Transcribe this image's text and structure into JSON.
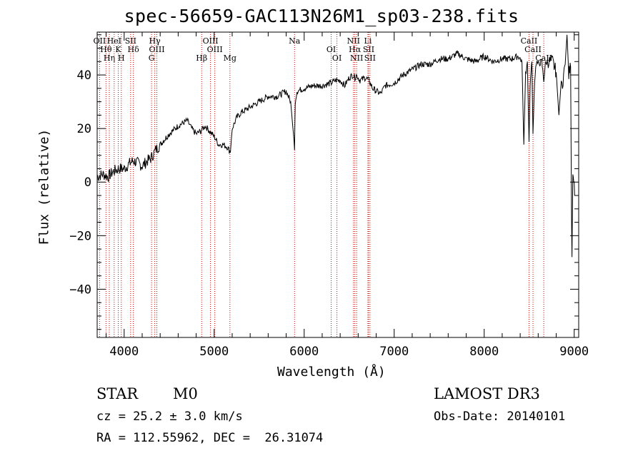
{
  "chart_data": {
    "type": "line",
    "title": "spec-56659-GAC113N26M1_sp03-238.fits",
    "xlabel": "Wavelength (Å)",
    "ylabel": "Flux (relative)",
    "xlim": [
      3700,
      9050
    ],
    "ylim": [
      -58,
      56
    ],
    "x_ticks": [
      4000,
      5000,
      6000,
      7000,
      8000,
      9000
    ],
    "y_ticks": [
      -40,
      -20,
      0,
      20,
      40
    ],
    "grid": false,
    "series": [
      {
        "x": [
          3700,
          3760,
          3820,
          3880,
          3940,
          4000,
          4060,
          4100,
          4160,
          4200,
          4260,
          4300,
          4350,
          4400,
          4500,
          4600,
          4700,
          4750,
          4800,
          4850,
          4900,
          4950,
          5000,
          5050,
          5100,
          5150,
          5180,
          5200,
          5250,
          5300,
          5400,
          5500,
          5600,
          5700,
          5800,
          5850,
          5880,
          5893,
          5900,
          5920,
          6000,
          6100,
          6200,
          6300,
          6350,
          6400,
          6450,
          6500,
          6540,
          6563,
          6580,
          6620,
          6680,
          6720,
          6760,
          6800,
          6850,
          6900,
          7000,
          7100,
          7200,
          7300,
          7400,
          7500,
          7600,
          7700,
          7800,
          7900,
          8000,
          8100,
          8200,
          8300,
          8380,
          8420,
          8440,
          8460,
          8480,
          8498,
          8510,
          8520,
          8530,
          8542,
          8560,
          8580,
          8600,
          8640,
          8662,
          8680,
          8700,
          8760,
          8800,
          8830,
          8850,
          8870,
          8900,
          8920,
          8940,
          8950,
          8960,
          8970,
          8975,
          8985,
          9000,
          9010
        ],
        "y": [
          2,
          3,
          2,
          4,
          5,
          5,
          7,
          8,
          7,
          6,
          8,
          9,
          12,
          14,
          18,
          21,
          23,
          20,
          18,
          19,
          21,
          19,
          17,
          14,
          14,
          13,
          11,
          20,
          24,
          26,
          28,
          30,
          32,
          32,
          34,
          30,
          18,
          12,
          30,
          34,
          35,
          36,
          36,
          37,
          38,
          38,
          36,
          39,
          40,
          39,
          40,
          38,
          39,
          38,
          35,
          34,
          33,
          36,
          37,
          40,
          42,
          44,
          44,
          46,
          46,
          48,
          46,
          45,
          47,
          45,
          46,
          46,
          47,
          45,
          14,
          40,
          45,
          15,
          35,
          42,
          45,
          18,
          38,
          45,
          44,
          45,
          38,
          44,
          45,
          45,
          41,
          25,
          35,
          37,
          44,
          55,
          40,
          42,
          43,
          -10,
          -28,
          5,
          0,
          -5
        ]
      }
    ],
    "lines": [
      {
        "x": 3727,
        "label": "OII"
      },
      {
        "x": 3798,
        "label": "Hθ"
      },
      {
        "x": 3835,
        "label": "Hη"
      },
      {
        "x": 3889,
        "label": "HeI"
      },
      {
        "x": 3934,
        "label": "K"
      },
      {
        "x": 3968,
        "label": "H"
      },
      {
        "x": 4072,
        "label": "SII"
      },
      {
        "x": 4102,
        "label": "Hδ"
      },
      {
        "x": 4304,
        "label": "G"
      },
      {
        "x": 4340,
        "label": "Hγ"
      },
      {
        "x": 4363,
        "label": "OIII"
      },
      {
        "x": 4861,
        "label": "Hβ"
      },
      {
        "x": 4959,
        "label": "OIII"
      },
      {
        "x": 5007,
        "label": "OIII"
      },
      {
        "x": 5175,
        "label": "Mg"
      },
      {
        "x": 5893,
        "label": "Na"
      },
      {
        "x": 6300,
        "label": "OI"
      },
      {
        "x": 6364,
        "label": "OI"
      },
      {
        "x": 6548,
        "label": "NII"
      },
      {
        "x": 6563,
        "label": "Hα"
      },
      {
        "x": 6583,
        "label": "NII"
      },
      {
        "x": 6708,
        "label": "Li"
      },
      {
        "x": 6716,
        "label": "SII"
      },
      {
        "x": 6731,
        "label": "SII"
      },
      {
        "x": 8498,
        "label": "CaII"
      },
      {
        "x": 8542,
        "label": "CaII"
      },
      {
        "x": 8662,
        "label": "CaII"
      }
    ]
  },
  "info": {
    "class": "STAR",
    "subclass": "M0",
    "cz": "cz = 25.2 ± 3.0 km/s",
    "coords": "RA = 112.55962, DEC =  26.31074",
    "survey": "LAMOST DR3",
    "obs_date": "Obs-Date: 20140101"
  },
  "colors": {
    "spectrum": "#000000",
    "line_markers": "#cc0000",
    "axes": "#000000"
  }
}
